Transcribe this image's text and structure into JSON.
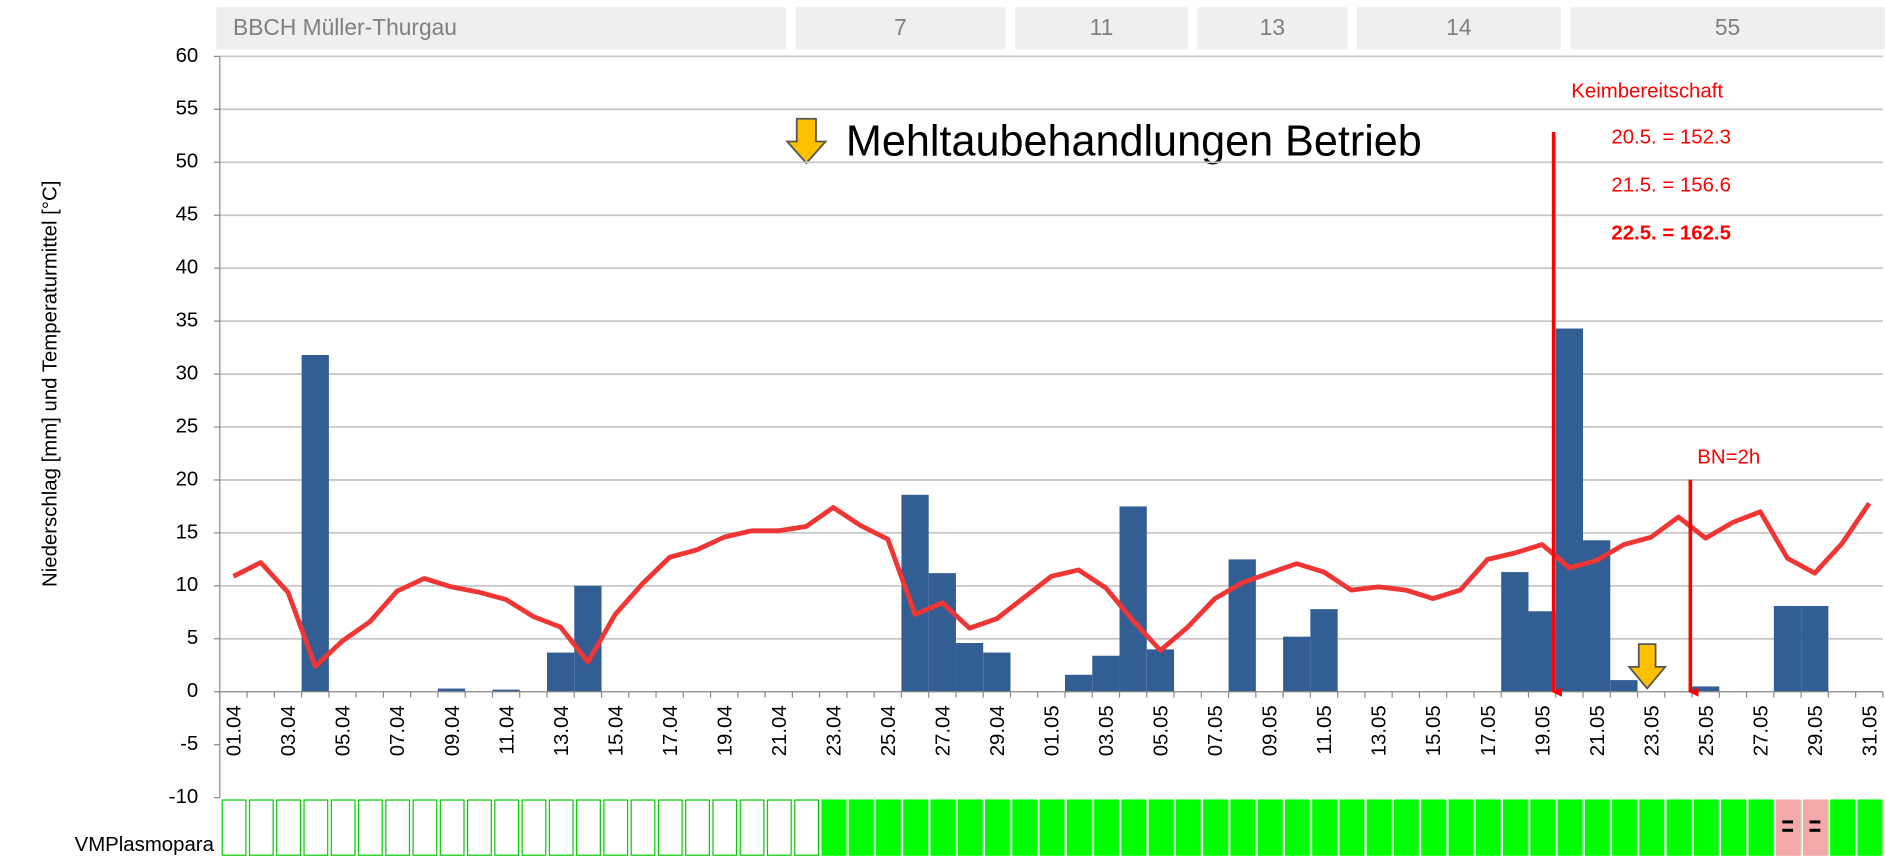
{
  "chart_data": {
    "type": "bar_line",
    "ylabel": "Niederschlag [mm] und Temperaturmittel [°C]",
    "ylim": [
      -10,
      60
    ],
    "yticks": [
      -10,
      -5,
      0,
      5,
      10,
      15,
      20,
      25,
      30,
      35,
      40,
      45,
      50,
      55,
      60
    ],
    "grid": true,
    "categories": [
      "01.04",
      null,
      "03.04",
      null,
      "05.04",
      null,
      "07.04",
      null,
      "09.04",
      null,
      "11.04",
      null,
      "13.04",
      null,
      "15.04",
      null,
      "17.04",
      null,
      "19.04",
      null,
      "21.04",
      null,
      "23.04",
      null,
      "25.04",
      null,
      "27.04",
      null,
      "29.04",
      null,
      "01.05",
      null,
      "03.05",
      null,
      "05.05",
      null,
      "07.05",
      null,
      "09.05",
      null,
      "11.05",
      null,
      "13.05",
      null,
      "15.05",
      null,
      "17.05",
      null,
      "19.05",
      null,
      "21.05",
      null,
      "23.05",
      null,
      "25.05",
      null,
      "27.05",
      null,
      "29.05",
      null,
      "31.05"
    ],
    "series": [
      {
        "type": "bar",
        "color": "#335e93",
        "values": [
          0,
          0,
          0,
          31.8,
          0,
          0,
          0,
          0,
          0.3,
          0,
          0.2,
          0,
          3.7,
          10,
          0,
          0,
          0,
          0,
          0,
          0,
          0,
          0,
          0,
          0,
          0,
          18.6,
          11.2,
          4.6,
          3.7,
          0,
          0,
          1.6,
          3.4,
          17.5,
          4.0,
          0,
          0,
          12.5,
          0,
          5.2,
          7.8,
          0,
          0,
          0,
          0,
          0,
          0,
          11.3,
          7.6,
          34.3,
          14.3,
          1.1,
          0,
          0,
          0.5,
          0,
          0,
          8.1,
          8.1,
          0,
          0
        ]
      },
      {
        "type": "line",
        "color": "#f03535",
        "values": [
          10.9,
          12.2,
          9.4,
          2.4,
          4.8,
          6.6,
          9.5,
          10.7,
          9.9,
          9.4,
          8.7,
          7.1,
          6.1,
          2.8,
          7.3,
          10.2,
          12.7,
          13.4,
          14.6,
          15.2,
          15.2,
          15.6,
          17.4,
          15.7,
          14.4,
          7.3,
          8.4,
          6.0,
          6.9,
          8.9,
          10.9,
          11.5,
          9.8,
          6.7,
          3.9,
          6.1,
          8.8,
          10.3,
          11.2,
          12.1,
          11.3,
          9.6,
          9.9,
          9.6,
          8.8,
          9.6,
          12.5,
          13.1,
          13.9,
          11.7,
          12.4,
          13.9,
          14.6,
          16.5,
          14.5,
          16.0,
          17.0,
          12.6,
          11.2,
          14.0,
          17.8
        ]
      }
    ],
    "bbch": {
      "label": "BBCH Müller-Thurgau",
      "stages": [
        "7",
        "11",
        "13",
        "14",
        "55"
      ]
    },
    "annotations": {
      "legend_text": "Mehltaubehandlungen Betrieb",
      "keim_title": "Keimbereitschaft",
      "keim_lines": [
        "20.5. = 152.3",
        "21.5. = 156.6",
        "22.5. = 162.5"
      ],
      "bn": "BN=2h"
    },
    "vm": {
      "label": "VMPlasmopara",
      "cell_colors": [
        "#ffffff",
        "#ffffff",
        "#ffffff",
        "#ffffff",
        "#ffffff",
        "#ffffff",
        "#ffffff",
        "#ffffff",
        "#ffffff",
        "#ffffff",
        "#ffffff",
        "#ffffff",
        "#ffffff",
        "#ffffff",
        "#ffffff",
        "#ffffff",
        "#ffffff",
        "#ffffff",
        "#ffffff",
        "#ffffff",
        "#ffffff",
        "#ffffff",
        "#00ff00",
        "#00ff00",
        "#00ff00",
        "#00ff00",
        "#00ff00",
        "#00ff00",
        "#00ff00",
        "#00ff00",
        "#00ff00",
        "#00ff00",
        "#00ff00",
        "#00ff00",
        "#00ff00",
        "#00ff00",
        "#00ff00",
        "#00ff00",
        "#00ff00",
        "#00ff00",
        "#00ff00",
        "#00ff00",
        "#00ff00",
        "#00ff00",
        "#00ff00",
        "#00ff00",
        "#00ff00",
        "#00ff00",
        "#00ff00",
        "#00ff00",
        "#00ff00",
        "#00ff00",
        "#00ff00",
        "#00ff00",
        "#00ff00",
        "#00ff00",
        "#00ff00",
        "#f4a8a8",
        "#f4a8a8",
        "#00ff00",
        "#00ff00"
      ]
    }
  }
}
